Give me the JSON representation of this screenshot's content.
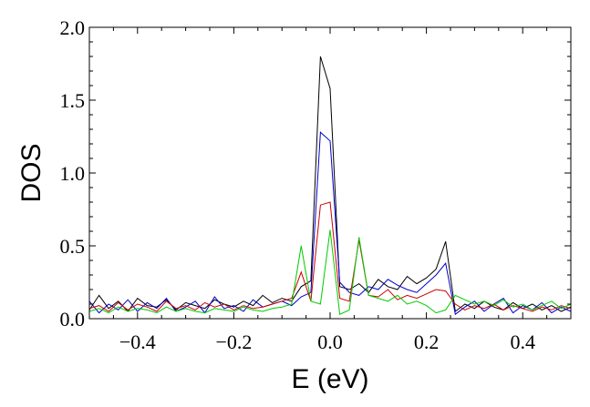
{
  "chart_data": {
    "type": "line",
    "xlabel": "E (eV)",
    "ylabel": "DOS",
    "xlim": [
      -0.5,
      0.5
    ],
    "ylim": [
      0,
      2.0
    ],
    "x_ticks": [
      -0.4,
      -0.2,
      0.0,
      0.2,
      0.4
    ],
    "x_tick_labels": [
      "−0.4",
      "−0.2",
      "0.0",
      "0.2",
      "0.4"
    ],
    "y_ticks": [
      0,
      0.5,
      1.0,
      1.5,
      2.0
    ],
    "y_tick_labels": [
      "0.0",
      "0.5",
      "1.0",
      "1.5",
      "2.0"
    ],
    "grid": false,
    "legend": "none",
    "x": [
      -0.5,
      -0.48,
      -0.46,
      -0.44,
      -0.42,
      -0.4,
      -0.38,
      -0.36,
      -0.34,
      -0.32,
      -0.3,
      -0.28,
      -0.26,
      -0.24,
      -0.22,
      -0.2,
      -0.18,
      -0.16,
      -0.14,
      -0.12,
      -0.1,
      -0.08,
      -0.06,
      -0.04,
      -0.02,
      0.0,
      0.02,
      0.04,
      0.06,
      0.08,
      0.1,
      0.12,
      0.14,
      0.16,
      0.18,
      0.2,
      0.22,
      0.24,
      0.26,
      0.28,
      0.3,
      0.32,
      0.34,
      0.36,
      0.38,
      0.4,
      0.42,
      0.44,
      0.46,
      0.48,
      0.5
    ],
    "series": [
      {
        "color": "#000000",
        "values": [
          0.06,
          0.16,
          0.07,
          0.12,
          0.05,
          0.14,
          0.09,
          0.08,
          0.13,
          0.06,
          0.11,
          0.09,
          0.07,
          0.13,
          0.1,
          0.08,
          0.12,
          0.09,
          0.16,
          0.11,
          0.14,
          0.12,
          0.22,
          0.26,
          1.8,
          1.58,
          0.22,
          0.2,
          0.24,
          0.18,
          0.27,
          0.22,
          0.2,
          0.29,
          0.24,
          0.28,
          0.34,
          0.53,
          0.05,
          0.1,
          0.07,
          0.12,
          0.08,
          0.06,
          0.11,
          0.07,
          0.1,
          0.06,
          0.09,
          0.05,
          0.08
        ]
      },
      {
        "color": "#0000cc",
        "values": [
          0.12,
          0.04,
          0.1,
          0.06,
          0.13,
          0.05,
          0.11,
          0.07,
          0.14,
          0.05,
          0.08,
          0.12,
          0.04,
          0.15,
          0.07,
          0.09,
          0.05,
          0.13,
          0.08,
          0.1,
          0.12,
          0.09,
          0.15,
          0.18,
          1.28,
          1.22,
          0.25,
          0.18,
          0.16,
          0.22,
          0.2,
          0.27,
          0.23,
          0.2,
          0.18,
          0.24,
          0.3,
          0.38,
          0.03,
          0.08,
          0.12,
          0.05,
          0.1,
          0.14,
          0.04,
          0.09,
          0.06,
          0.11,
          0.04,
          0.08,
          0.05
        ]
      },
      {
        "color": "#cc0000",
        "values": [
          0.07,
          0.09,
          0.05,
          0.11,
          0.06,
          0.1,
          0.08,
          0.05,
          0.12,
          0.07,
          0.09,
          0.06,
          0.11,
          0.08,
          0.1,
          0.06,
          0.09,
          0.07,
          0.08,
          0.1,
          0.12,
          0.14,
          0.32,
          0.12,
          0.78,
          0.8,
          0.14,
          0.12,
          0.54,
          0.16,
          0.15,
          0.2,
          0.13,
          0.16,
          0.14,
          0.17,
          0.2,
          0.19,
          0.1,
          0.06,
          0.09,
          0.07,
          0.1,
          0.06,
          0.09,
          0.07,
          0.05,
          0.08,
          0.06,
          0.09,
          0.07
        ]
      },
      {
        "color": "#00cc00",
        "values": [
          0.05,
          0.07,
          0.04,
          0.08,
          0.05,
          0.07,
          0.06,
          0.04,
          0.08,
          0.05,
          0.07,
          0.05,
          0.04,
          0.07,
          0.06,
          0.05,
          0.08,
          0.06,
          0.05,
          0.07,
          0.08,
          0.1,
          0.5,
          0.12,
          0.1,
          0.61,
          0.03,
          0.06,
          0.56,
          0.16,
          0.14,
          0.12,
          0.16,
          0.1,
          0.12,
          0.09,
          0.04,
          0.06,
          0.16,
          0.13,
          0.1,
          0.12,
          0.09,
          0.13,
          0.08,
          0.1,
          0.06,
          0.09,
          0.12,
          0.07,
          0.1
        ]
      }
    ]
  }
}
